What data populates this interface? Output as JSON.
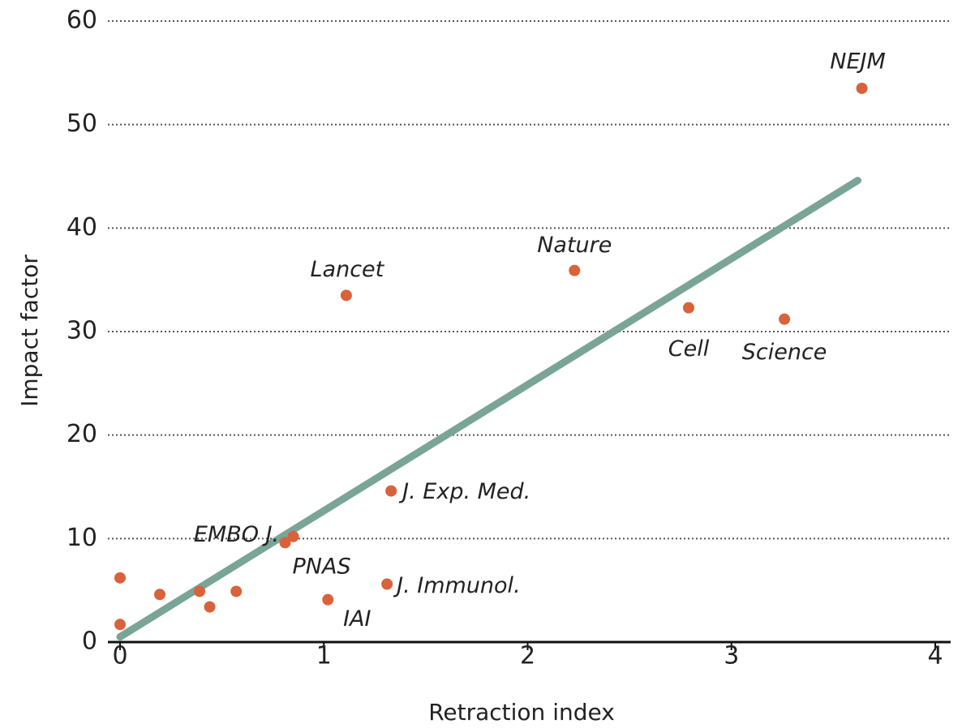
{
  "chart_data": {
    "type": "scatter",
    "xlabel": "Retraction index",
    "ylabel": "Impact factor",
    "x": [
      0,
      0,
      0.195,
      0.39,
      0.44,
      0.57,
      0.81,
      0.85,
      1.02,
      1.11,
      1.31,
      1.33,
      2.23,
      2.79,
      3.26,
      3.64
    ],
    "values": [
      6.2,
      1.7,
      4.6,
      4.9,
      3.4,
      4.9,
      9.6,
      10.2,
      4.1,
      33.5,
      5.6,
      14.6,
      35.9,
      32.3,
      31.2,
      53.5
    ],
    "labels": [
      null,
      null,
      null,
      null,
      null,
      null,
      "EMBO J.",
      "PNAS",
      "IAI",
      "Lancet",
      "J. Immunol.",
      "J. Exp. Med.",
      "Nature",
      "Cell",
      "Science",
      "NEJM"
    ],
    "color": "#d9623b",
    "trend": {
      "x": [
        0,
        3.62
      ],
      "values": [
        0.5,
        44.6
      ],
      "color": "#7aa596"
    },
    "xlim": [
      0,
      4
    ],
    "xticks": [
      0,
      1,
      2,
      3,
      4
    ],
    "ylim": [
      0,
      60
    ],
    "yticks": [
      0,
      10,
      20,
      30,
      40,
      50,
      60
    ],
    "grid": true
  }
}
